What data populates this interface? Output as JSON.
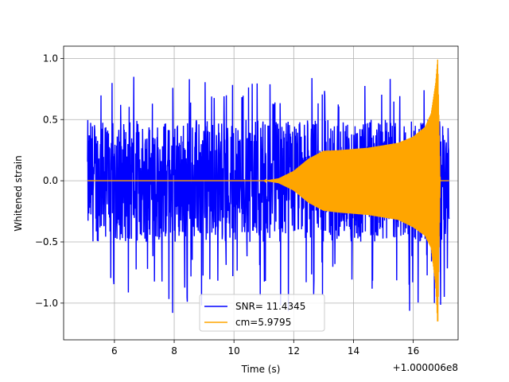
{
  "chart_data": {
    "type": "line",
    "xlabel": "Time (s)",
    "ylabel": "Whitened strain",
    "x_offset_label": "+1.000006e8",
    "xlim": [
      4.3,
      17.5
    ],
    "ylim": [
      -1.3,
      1.1
    ],
    "x_ticks": [
      6,
      8,
      10,
      12,
      14,
      16
    ],
    "x_tick_labels": [
      "6",
      "8",
      "10",
      "12",
      "14",
      "16"
    ],
    "y_ticks": [
      -1.0,
      -0.5,
      0.0,
      0.5,
      1.0
    ],
    "y_tick_labels": [
      "−1.0",
      "−0.5",
      "0.0",
      "0.5",
      "1.0"
    ],
    "grid": true,
    "legend_position": "lower-center",
    "series": [
      {
        "name": "SNR= 11.4345",
        "color": "#0000ff",
        "kind": "noise",
        "x_range": [
          5.1,
          17.2
        ],
        "typical_amplitude": 0.5,
        "min": -1.1,
        "max": 0.85
      },
      {
        "name": "cm=5.9795",
        "color": "#ffa500",
        "kind": "chirp",
        "envelope_x": [
          5.1,
          11.0,
          11.5,
          12.0,
          12.5,
          13.0,
          13.5,
          14.0,
          14.5,
          15.0,
          15.5,
          16.0,
          16.4,
          16.6,
          16.75,
          16.82,
          16.9,
          17.2
        ],
        "envelope_upper": [
          0.0,
          0.0,
          0.02,
          0.08,
          0.18,
          0.245,
          0.25,
          0.26,
          0.27,
          0.29,
          0.31,
          0.36,
          0.44,
          0.55,
          0.8,
          1.0,
          0.0,
          0.0
        ],
        "envelope_lower": [
          0.0,
          0.0,
          -0.02,
          -0.08,
          -0.18,
          -0.245,
          -0.26,
          -0.27,
          -0.28,
          -0.3,
          -0.32,
          -0.38,
          -0.45,
          -0.55,
          -0.85,
          -1.2,
          0.0,
          0.0
        ],
        "max": 1.0,
        "min": -1.2
      }
    ]
  }
}
